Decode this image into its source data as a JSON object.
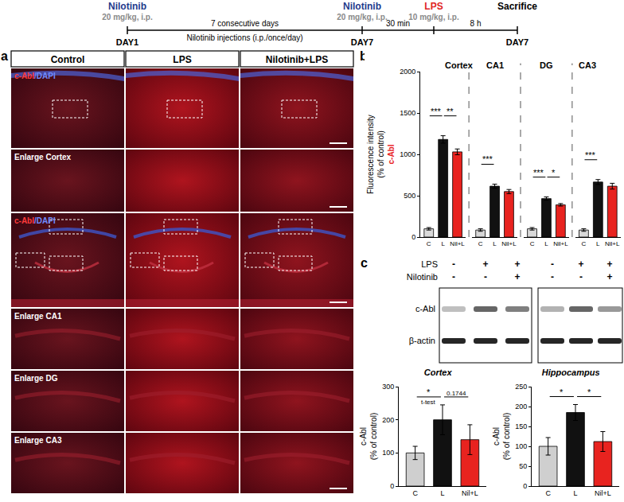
{
  "timeline": {
    "events": [
      {
        "label": "Nilotinib",
        "color": "#1f3b8c",
        "dose": "20 mg/kg, i.p.",
        "day": "DAY1"
      },
      {
        "label": "Nilotinib",
        "color": "#1f3b8c",
        "dose": "20 mg/kg, i.p.",
        "day": "DAY7"
      },
      {
        "label": "LPS",
        "color": "#e02424",
        "dose": "10 mg/kg, i.p."
      },
      {
        "label": "Sacrifice",
        "color": "#000000",
        "day": "DAY7"
      }
    ],
    "intervals": [
      {
        "text": [
          "7 consecutive days",
          "Nilotinib injections (i.p./once/day)"
        ]
      },
      {
        "text": [
          "30 min"
        ]
      },
      {
        "text": [
          "8 h"
        ]
      }
    ]
  },
  "panel_a": {
    "label": "a",
    "columns": [
      "Control",
      "LPS",
      "Nilotinib+LPS"
    ],
    "rows": [
      "c-Abl/DAPI",
      "Enlarge Cortex",
      "c-Abl/DAPI",
      "Enlarge CA1",
      "Enlarge DG",
      "Enlarge CA3"
    ]
  },
  "panel_c_blot": {
    "label": "c",
    "conditions": [
      {
        "name": "LPS",
        "signs": [
          "-",
          "+",
          "+",
          "-",
          "+",
          "+"
        ]
      },
      {
        "name": "Nilotinib",
        "signs": [
          "-",
          "-",
          "+",
          "-",
          "-",
          "+"
        ]
      }
    ],
    "bands": [
      "c-Abl",
      "β-actin"
    ]
  },
  "chart_data": [
    {
      "type": "bar",
      "label": "b",
      "title": "c-Abl",
      "ylabel": [
        "Fluorescence intensity",
        "(% of control)"
      ],
      "ylim": [
        0,
        2000
      ],
      "yticks": [
        0,
        500,
        1000,
        1500,
        2000
      ],
      "grid": false,
      "panels": [
        {
          "title": "Cortex",
          "categories": [
            "C",
            "L",
            "Nil+L"
          ],
          "values": [
            100,
            1180,
            1030
          ],
          "errors": [
            15,
            45,
            35
          ],
          "colors": [
            "#d9d9d9",
            "#111111",
            "#e8231f"
          ],
          "significance": [
            {
              "from": 0,
              "to": 1,
              "label": "***"
            },
            {
              "from": 1,
              "to": 2,
              "label": "**"
            }
          ]
        },
        {
          "title": "CA1",
          "categories": [
            "C",
            "L",
            "Nil+L"
          ],
          "values": [
            85,
            615,
            550
          ],
          "errors": [
            15,
            25,
            25
          ],
          "colors": [
            "#d9d9d9",
            "#111111",
            "#e8231f"
          ],
          "significance": [
            {
              "from": 0,
              "to": 1,
              "label": "***"
            }
          ]
        },
        {
          "title": "DG",
          "categories": [
            "C",
            "L",
            "Nil+L"
          ],
          "values": [
            100,
            465,
            390
          ],
          "errors": [
            15,
            20,
            15
          ],
          "colors": [
            "#d9d9d9",
            "#111111",
            "#e8231f"
          ],
          "significance": [
            {
              "from": 0,
              "to": 1,
              "label": "***"
            },
            {
              "from": 1,
              "to": 2,
              "label": "*"
            }
          ]
        },
        {
          "title": "CA3",
          "categories": [
            "C",
            "L",
            "Nil+L"
          ],
          "values": [
            85,
            665,
            615
          ],
          "errors": [
            15,
            30,
            35
          ],
          "colors": [
            "#d9d9d9",
            "#111111",
            "#e8231f"
          ],
          "significance": [
            {
              "from": 0,
              "to": 1,
              "label": "***"
            }
          ]
        }
      ]
    },
    {
      "type": "bar",
      "title": "Cortex",
      "ylabel": [
        "c-Abl",
        "(% of control)"
      ],
      "categories": [
        "C",
        "L",
        "Nil+L"
      ],
      "values": [
        100,
        200,
        140
      ],
      "errors": [
        20,
        45,
        45
      ],
      "colors": [
        "#cfcfcf",
        "#111111",
        "#e8231f"
      ],
      "ylim": [
        0,
        300
      ],
      "yticks": [
        0,
        100,
        200,
        300
      ],
      "grid": false,
      "significance": [
        {
          "from": 0,
          "to": 1,
          "label": "*",
          "note": "t-test"
        },
        {
          "from": 1,
          "to": 2,
          "label": "0.1744"
        }
      ]
    },
    {
      "type": "bar",
      "title": "Hippocampus",
      "ylabel": [
        "c-Abl",
        "(% of control)"
      ],
      "categories": [
        "C",
        "L",
        "Nil+L"
      ],
      "values": [
        100,
        185,
        112
      ],
      "errors": [
        22,
        20,
        25
      ],
      "colors": [
        "#cfcfcf",
        "#111111",
        "#e8231f"
      ],
      "ylim": [
        0,
        250
      ],
      "yticks": [
        0,
        50,
        100,
        150,
        200,
        250
      ],
      "grid": false,
      "significance": [
        {
          "from": 0,
          "to": 1,
          "label": "*"
        },
        {
          "from": 1,
          "to": 2,
          "label": "*"
        }
      ]
    }
  ]
}
